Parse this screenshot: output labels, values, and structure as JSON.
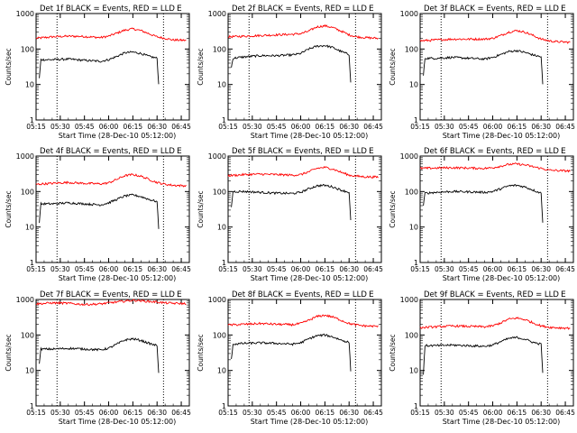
{
  "colors": {
    "events": "#000000",
    "lld": "#ff0000",
    "axes": "#000000",
    "background": "#ffffff"
  },
  "xlabel": "Start Time (28-Dec-10 05:12:00)",
  "ylabel": "Counts/sec",
  "x_ticks": [
    "05:15",
    "05:30",
    "05:45",
    "06:00",
    "06:15",
    "06:30",
    "06:45"
  ],
  "y_ticks": [
    "1",
    "10",
    "100",
    "1000"
  ],
  "marker": "E",
  "chart_data": [
    {
      "type": "line",
      "title": "Det 1f BLACK = Events, RED = LLD",
      "y_scale": "log",
      "ylim": [
        1,
        1000
      ],
      "xlim": [
        "05:15",
        "06:50"
      ],
      "vlines": [
        "05:28",
        "06:34"
      ],
      "xlabel": "Start Time (28-Dec-10 05:12:00)",
      "ylabel": "Counts/sec",
      "grid": false,
      "series": [
        {
          "x": [
            "05:15",
            "05:25",
            "05:35",
            "05:45",
            "05:55",
            "06:00",
            "06:05",
            "06:10",
            "06:15",
            "06:20",
            "06:25",
            "06:30",
            "06:35",
            "06:40",
            "06:48"
          ],
          "values": [
            200,
            220,
            230,
            225,
            210,
            230,
            280,
            340,
            370,
            330,
            270,
            220,
            200,
            180,
            175
          ]
        },
        {
          "x": [
            "05:17",
            "05:18",
            "05:25",
            "05:35",
            "05:45",
            "05:55",
            "06:00",
            "06:05",
            "06:10",
            "06:15",
            "06:20",
            "06:25",
            "06:30",
            "06:31"
          ],
          "values": [
            15,
            50,
            50,
            52,
            48,
            45,
            50,
            62,
            78,
            82,
            75,
            62,
            55,
            10
          ]
        }
      ]
    },
    {
      "type": "line",
      "title": "Det 2f BLACK = Events, RED = LLD",
      "y_scale": "log",
      "ylim": [
        1,
        1000
      ],
      "xlim": [
        "05:15",
        "06:50"
      ],
      "vlines": [
        "05:28",
        "06:34"
      ],
      "xlabel": "Start Time (28-Dec-10 05:12:00)",
      "ylabel": "Counts/sec",
      "grid": false,
      "series": [
        {
          "x": [
            "05:15",
            "05:25",
            "05:35",
            "05:45",
            "05:55",
            "06:00",
            "06:05",
            "06:10",
            "06:15",
            "06:20",
            "06:25",
            "06:30",
            "06:35",
            "06:40",
            "06:48"
          ],
          "values": [
            220,
            230,
            240,
            250,
            260,
            270,
            320,
            420,
            450,
            400,
            320,
            250,
            220,
            210,
            200
          ]
        },
        {
          "x": [
            "05:17",
            "05:18",
            "05:25",
            "05:35",
            "05:45",
            "05:55",
            "06:00",
            "06:05",
            "06:10",
            "06:15",
            "06:20",
            "06:25",
            "06:30",
            "06:31"
          ],
          "values": [
            30,
            55,
            60,
            65,
            65,
            68,
            75,
            100,
            120,
            125,
            110,
            85,
            70,
            12
          ]
        }
      ]
    },
    {
      "type": "line",
      "title": "Det 3f BLACK = Events, RED = LLD",
      "y_scale": "log",
      "ylim": [
        1,
        1000
      ],
      "xlim": [
        "05:15",
        "06:50"
      ],
      "vlines": [
        "05:28",
        "06:34"
      ],
      "xlabel": "Start Time (28-Dec-10 05:12:00)",
      "ylabel": "Counts/sec",
      "grid": false,
      "series": [
        {
          "x": [
            "05:15",
            "05:25",
            "05:35",
            "05:45",
            "05:55",
            "06:00",
            "06:05",
            "06:10",
            "06:15",
            "06:20",
            "06:25",
            "06:30",
            "06:35",
            "06:40",
            "06:48"
          ],
          "values": [
            170,
            180,
            190,
            190,
            190,
            200,
            240,
            300,
            330,
            300,
            240,
            190,
            170,
            160,
            155
          ]
        },
        {
          "x": [
            "05:17",
            "05:18",
            "05:25",
            "05:35",
            "05:45",
            "05:55",
            "06:00",
            "06:05",
            "06:10",
            "06:15",
            "06:20",
            "06:25",
            "06:30",
            "06:31"
          ],
          "values": [
            18,
            55,
            55,
            58,
            55,
            52,
            58,
            70,
            85,
            90,
            80,
            68,
            60,
            10
          ]
        }
      ]
    },
    {
      "type": "line",
      "title": "Det 4f BLACK = Events, RED = LLD",
      "y_scale": "log",
      "ylim": [
        1,
        1000
      ],
      "xlim": [
        "05:15",
        "06:50"
      ],
      "vlines": [
        "05:28",
        "06:34"
      ],
      "xlabel": "Start Time (28-Dec-10 05:12:00)",
      "ylabel": "Counts/sec",
      "grid": false,
      "series": [
        {
          "x": [
            "05:15",
            "05:25",
            "05:35",
            "05:45",
            "05:55",
            "06:00",
            "06:05",
            "06:10",
            "06:15",
            "06:20",
            "06:25",
            "06:30",
            "06:35",
            "06:40",
            "06:48"
          ],
          "values": [
            160,
            170,
            180,
            170,
            165,
            175,
            220,
            280,
            300,
            270,
            220,
            180,
            160,
            150,
            145
          ]
        },
        {
          "x": [
            "05:17",
            "05:18",
            "05:25",
            "05:35",
            "05:45",
            "05:55",
            "06:00",
            "06:05",
            "06:10",
            "06:15",
            "06:20",
            "06:25",
            "06:30",
            "06:31"
          ],
          "values": [
            14,
            45,
            45,
            48,
            45,
            42,
            48,
            60,
            75,
            80,
            72,
            60,
            52,
            9
          ]
        }
      ]
    },
    {
      "type": "line",
      "title": "Det 5f BLACK = Events, RED = LLD",
      "y_scale": "log",
      "ylim": [
        1,
        1000
      ],
      "xlim": [
        "05:15",
        "06:50"
      ],
      "vlines": [
        "05:28",
        "06:34"
      ],
      "xlabel": "Start Time (28-Dec-10 05:12:00)",
      "ylabel": "Counts/sec",
      "grid": false,
      "series": [
        {
          "x": [
            "05:15",
            "05:25",
            "05:35",
            "05:45",
            "05:55",
            "06:00",
            "06:05",
            "06:10",
            "06:15",
            "06:20",
            "06:25",
            "06:30",
            "06:35",
            "06:40",
            "06:48"
          ],
          "values": [
            280,
            300,
            310,
            300,
            290,
            300,
            360,
            450,
            480,
            430,
            350,
            290,
            270,
            260,
            255
          ]
        },
        {
          "x": [
            "05:17",
            "05:18",
            "05:25",
            "05:35",
            "05:45",
            "05:55",
            "06:00",
            "06:05",
            "06:10",
            "06:15",
            "06:20",
            "06:25",
            "06:30",
            "06:31"
          ],
          "values": [
            35,
            100,
            100,
            95,
            90,
            88,
            95,
            120,
            145,
            150,
            135,
            110,
            95,
            15
          ]
        }
      ]
    },
    {
      "type": "line",
      "title": "Det 6f BLACK = Events, RED = LLD",
      "y_scale": "log",
      "ylim": [
        1,
        1000
      ],
      "xlim": [
        "05:15",
        "06:50"
      ],
      "vlines": [
        "05:28",
        "06:34"
      ],
      "xlabel": "Start Time (28-Dec-10 05:12:00)",
      "ylabel": "Counts/sec",
      "grid": false,
      "series": [
        {
          "x": [
            "05:15",
            "05:25",
            "05:35",
            "05:45",
            "05:55",
            "06:00",
            "06:05",
            "06:10",
            "06:15",
            "06:20",
            "06:25",
            "06:30",
            "06:35",
            "06:40",
            "06:48"
          ],
          "values": [
            450,
            460,
            470,
            460,
            450,
            470,
            520,
            580,
            600,
            560,
            500,
            450,
            400,
            390,
            380
          ]
        },
        {
          "x": [
            "05:17",
            "05:18",
            "05:25",
            "05:35",
            "05:45",
            "05:55",
            "06:00",
            "06:05",
            "06:10",
            "06:15",
            "06:20",
            "06:25",
            "06:30",
            "06:31"
          ],
          "values": [
            40,
            90,
            95,
            100,
            98,
            95,
            100,
            120,
            145,
            150,
            135,
            110,
            90,
            14
          ]
        }
      ]
    },
    {
      "type": "line",
      "title": "Det 7f BLACK = Events, RED = LLD",
      "y_scale": "log",
      "ylim": [
        1,
        1000
      ],
      "xlim": [
        "05:15",
        "06:50"
      ],
      "vlines": [
        "05:28",
        "06:34"
      ],
      "xlabel": "Start Time (28-Dec-10 05:12:00)",
      "ylabel": "Counts/sec",
      "grid": false,
      "series": [
        {
          "x": [
            "05:15",
            "05:25",
            "05:35",
            "05:45",
            "05:55",
            "06:00",
            "06:05",
            "06:10",
            "06:15",
            "06:20",
            "06:25",
            "06:30",
            "06:35",
            "06:40",
            "06:48"
          ],
          "values": [
            750,
            800,
            780,
            720,
            750,
            800,
            850,
            900,
            950,
            920,
            880,
            850,
            800,
            780,
            760
          ]
        },
        {
          "x": [
            "05:17",
            "05:18",
            "05:25",
            "05:35",
            "05:45",
            "05:55",
            "06:00",
            "06:05",
            "06:10",
            "06:15",
            "06:20",
            "06:25",
            "06:30",
            "06:31"
          ],
          "values": [
            15,
            40,
            40,
            42,
            40,
            38,
            42,
            55,
            72,
            78,
            70,
            58,
            50,
            9
          ]
        }
      ]
    },
    {
      "type": "line",
      "title": "Det 8f BLACK = Events, RED = LLD",
      "y_scale": "log",
      "ylim": [
        1,
        1000
      ],
      "xlim": [
        "05:15",
        "06:50"
      ],
      "vlines": [
        "05:28",
        "06:34"
      ],
      "xlabel": "Start Time (28-Dec-10 05:12:00)",
      "ylabel": "Counts/sec",
      "grid": false,
      "series": [
        {
          "x": [
            "05:15",
            "05:25",
            "05:35",
            "05:45",
            "05:55",
            "06:00",
            "06:05",
            "06:10",
            "06:15",
            "06:20",
            "06:25",
            "06:30",
            "06:35",
            "06:40",
            "06:48"
          ],
          "values": [
            190,
            200,
            210,
            200,
            195,
            210,
            260,
            330,
            360,
            320,
            260,
            210,
            190,
            180,
            175
          ]
        },
        {
          "x": [
            "05:17",
            "05:18",
            "05:25",
            "05:35",
            "05:45",
            "05:55",
            "06:00",
            "06:05",
            "06:10",
            "06:15",
            "06:20",
            "06:25",
            "06:30",
            "06:31"
          ],
          "values": [
            20,
            55,
            58,
            60,
            58,
            55,
            60,
            78,
            95,
            100,
            88,
            72,
            62,
            10
          ]
        }
      ]
    },
    {
      "type": "line",
      "title": "Det 9f BLACK = Events, RED = LLD",
      "y_scale": "log",
      "ylim": [
        1,
        1000
      ],
      "xlim": [
        "05:15",
        "06:50"
      ],
      "vlines": [
        "05:28",
        "06:34"
      ],
      "xlabel": "Start Time (28-Dec-10 05:12:00)",
      "ylabel": "Counts/sec",
      "grid": false,
      "series": [
        {
          "x": [
            "05:15",
            "05:25",
            "05:35",
            "05:45",
            "05:55",
            "06:00",
            "06:05",
            "06:10",
            "06:15",
            "06:20",
            "06:25",
            "06:30",
            "06:35",
            "06:40",
            "06:48"
          ],
          "values": [
            160,
            170,
            180,
            175,
            170,
            180,
            220,
            280,
            300,
            270,
            220,
            180,
            165,
            160,
            155
          ]
        },
        {
          "x": [
            "05:17",
            "05:18",
            "05:25",
            "05:35",
            "05:45",
            "05:55",
            "06:00",
            "06:05",
            "06:10",
            "06:15",
            "06:20",
            "06:25",
            "06:30",
            "06:31"
          ],
          "values": [
            8,
            50,
            50,
            52,
            50,
            48,
            52,
            65,
            80,
            85,
            76,
            62,
            55,
            9
          ]
        }
      ]
    }
  ]
}
